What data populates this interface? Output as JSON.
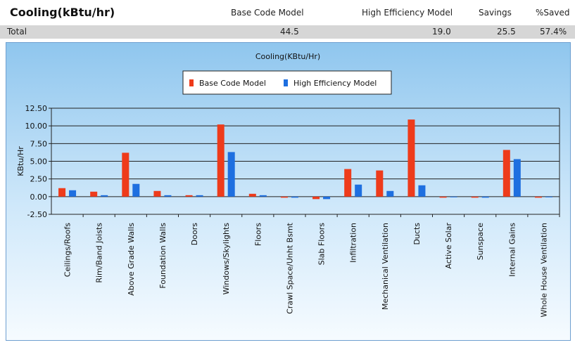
{
  "header": {
    "title": "Cooling(kBtu/hr)",
    "columns": [
      "Base Code Model",
      "High Efficiency Model",
      "Savings",
      "%Saved"
    ]
  },
  "total_row": {
    "label": "Total",
    "base": "44.5",
    "high": "19.0",
    "savings": "25.5",
    "pct": "57.4%"
  },
  "chart_data": {
    "type": "bar",
    "title": "Cooling(KBtu/Hr)",
    "ylabel": "KBtu/Hr",
    "xlabel": "",
    "ylim": [
      -2.5,
      12.5
    ],
    "yticks": [
      "12.50",
      "10.00",
      "7.50",
      "5.00",
      "2.50",
      "0.00",
      "-2.50"
    ],
    "grid": true,
    "legend_position": "top-center",
    "categories": [
      "Ceilings/Roofs",
      "Rim/Band Joists",
      "Above Grade Walls",
      "Foundation Walls",
      "Doors",
      "Windows/Skylights",
      "Floors",
      "Crawl Space/Unht Bsmt",
      "Slab Floors",
      "Infiltration",
      "Mechanical Ventilation",
      "Ducts",
      "Active Solar",
      "Sunspace",
      "Internal Gains",
      "Whole House Ventilation"
    ],
    "series": [
      {
        "name": "Base Code Model",
        "color": "#ee3b1b",
        "values": [
          1.2,
          0.7,
          6.2,
          0.8,
          0.2,
          10.2,
          0.4,
          -0.15,
          -0.35,
          3.9,
          3.7,
          10.9,
          -0.15,
          -0.15,
          6.6,
          -0.15
        ]
      },
      {
        "name": "High Efficiency Model",
        "color": "#1e6fe0",
        "values": [
          0.9,
          0.2,
          1.8,
          0.2,
          0.2,
          6.3,
          0.2,
          -0.15,
          -0.35,
          1.7,
          0.8,
          1.6,
          -0.1,
          -0.15,
          5.3,
          -0.1
        ]
      }
    ]
  }
}
